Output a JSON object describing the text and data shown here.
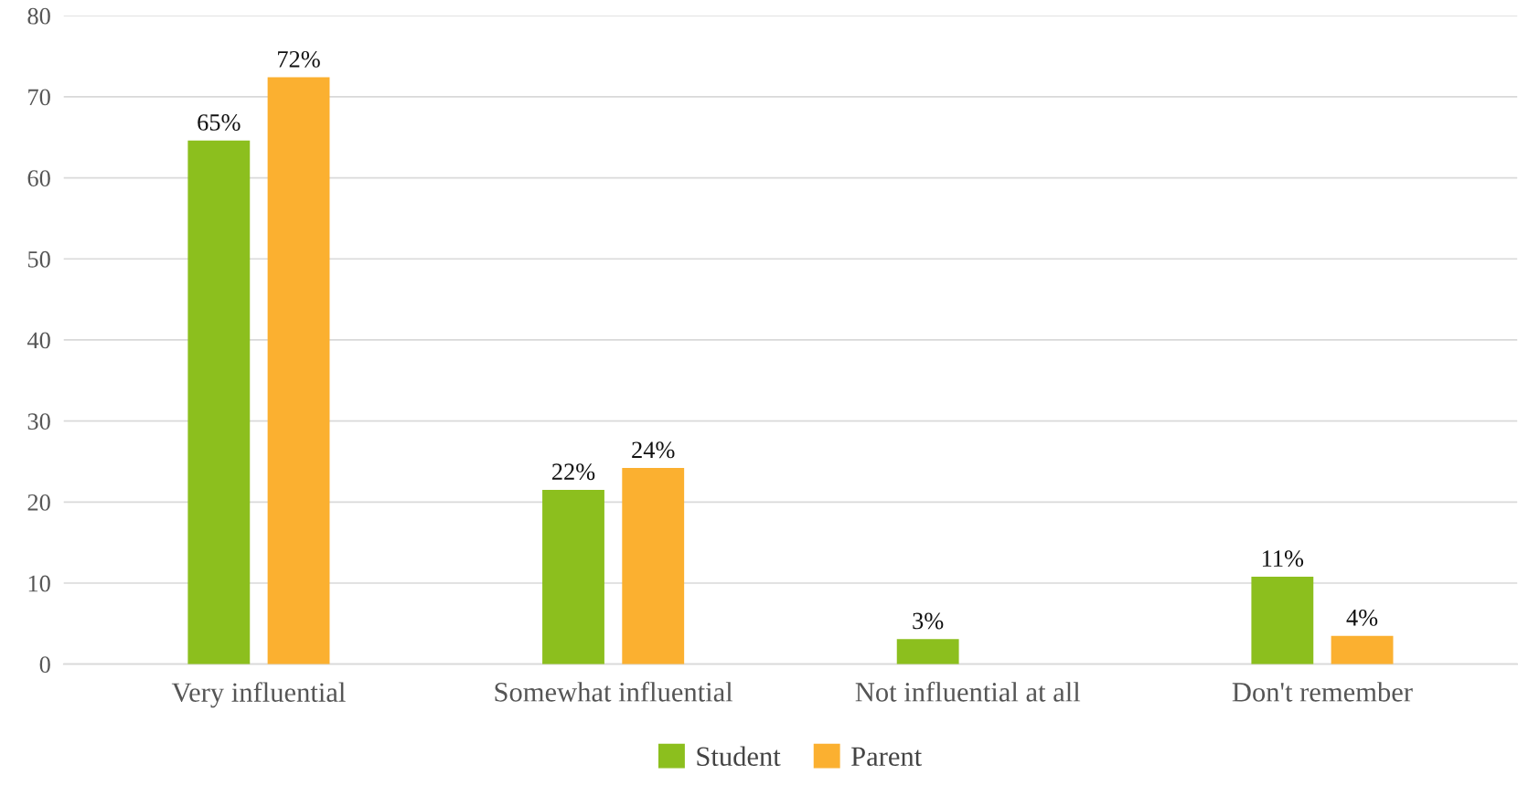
{
  "chart_data": {
    "type": "bar",
    "categories": [
      "Very influential",
      "Somewhat influential",
      "Not influential at all",
      "Don't remember"
    ],
    "series": [
      {
        "name": "Student",
        "color": "#8cbf1e",
        "values": [
          64.6,
          21.5,
          3.1,
          10.8
        ],
        "value_labels": [
          "65%",
          "22%",
          "3%",
          "11%"
        ]
      },
      {
        "name": "Parent",
        "color": "#fbb030",
        "values": [
          72.4,
          24.2,
          null,
          3.5
        ],
        "value_labels": [
          "72%",
          "24%",
          null,
          "4%"
        ]
      }
    ],
    "ylim": [
      0,
      80
    ],
    "yticks": [
      0,
      10,
      20,
      30,
      40,
      50,
      60,
      70,
      80
    ],
    "grid": "y",
    "legend": "bottom"
  }
}
